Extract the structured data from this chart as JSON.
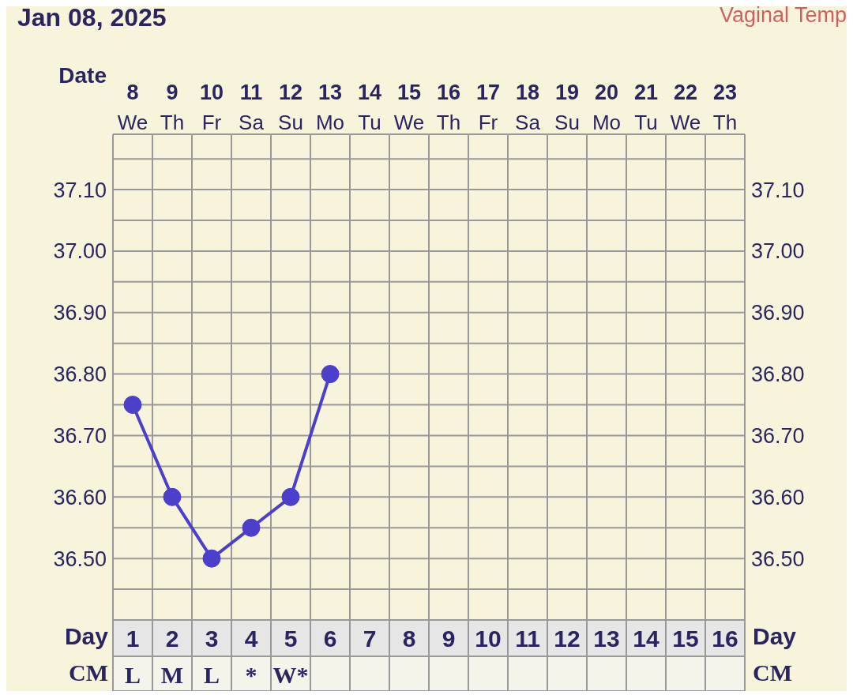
{
  "chart_data": {
    "type": "line",
    "title": "Jan 08, 2025",
    "subtitle": "Vaginal Temp",
    "xlabel": "Day",
    "x2label": "Date",
    "categories": [
      "1",
      "2",
      "3",
      "4",
      "5",
      "6",
      "7",
      "8",
      "9",
      "10",
      "11",
      "12",
      "13",
      "14",
      "15",
      "16"
    ],
    "x2lim": [
      7.5,
      23.5
    ],
    "x2ticks": [
      {
        "value": 8,
        "label": "8 We"
      },
      {
        "value": 9,
        "label": "9 Th"
      },
      {
        "value": 10,
        "label": "10 Fr"
      },
      {
        "value": 11,
        "label": "11 Sa"
      },
      {
        "value": 12,
        "label": "12 Su"
      },
      {
        "value": 13,
        "label": "13 Mo"
      },
      {
        "value": 14,
        "label": "14 Tu"
      },
      {
        "value": 15,
        "label": "15 We"
      },
      {
        "value": 16,
        "label": "16 Th"
      },
      {
        "value": 17,
        "label": "17 Fr"
      },
      {
        "value": 18,
        "label": "18 Sa"
      },
      {
        "value": 19,
        "label": "19 Su"
      },
      {
        "value": 20,
        "label": "20 Mo"
      },
      {
        "value": 21,
        "label": "21 Tu"
      },
      {
        "value": 22,
        "label": "22 We"
      },
      {
        "value": 23,
        "label": "23 Th"
      }
    ],
    "series": [
      {
        "color": "#4b3fcc",
        "values": [
          36.75,
          36.6,
          36.5,
          36.55,
          36.6,
          36.8,
          null,
          null,
          null,
          null,
          null,
          null,
          null,
          null,
          null,
          null
        ]
      }
    ],
    "ylim": [
      36.4,
      37.19
    ],
    "yticks": [
      {
        "value": 36.45,
        "label": null
      },
      {
        "value": 36.5,
        "label": "36.50"
      },
      {
        "value": 36.55,
        "label": null
      },
      {
        "value": 36.6,
        "label": "36.60"
      },
      {
        "value": 36.65,
        "label": null
      },
      {
        "value": 36.7,
        "label": "36.70"
      },
      {
        "value": 36.75,
        "label": null
      },
      {
        "value": 36.8,
        "label": "36.80"
      },
      {
        "value": 36.85,
        "label": null
      },
      {
        "value": 36.9,
        "label": "36.90"
      },
      {
        "value": 36.95,
        "label": null
      },
      {
        "value": 37.0,
        "label": "37.00"
      },
      {
        "value": 37.05,
        "label": null
      },
      {
        "value": 37.1,
        "label": "37.10"
      },
      {
        "value": 37.15,
        "label": null
      }
    ],
    "y2lim": [
      36.4,
      37.19
    ],
    "y2ticks": [
      {
        "value": 36.45,
        "label": null
      },
      {
        "value": 36.5,
        "label": "36.50"
      },
      {
        "value": 36.55,
        "label": null
      },
      {
        "value": 36.6,
        "label": "36.60"
      },
      {
        "value": 36.65,
        "label": null
      },
      {
        "value": 36.7,
        "label": "36.70"
      },
      {
        "value": 36.75,
        "label": null
      },
      {
        "value": 36.8,
        "label": "36.80"
      },
      {
        "value": 36.85,
        "label": null
      },
      {
        "value": 36.9,
        "label": "36.90"
      },
      {
        "value": 36.95,
        "label": null
      },
      {
        "value": 37.0,
        "label": "37.00"
      },
      {
        "value": 37.05,
        "label": null
      },
      {
        "value": 37.1,
        "label": "37.10"
      },
      {
        "value": 37.15,
        "label": null
      }
    ],
    "grid": true,
    "marker": "circle",
    "line_style": "solid",
    "annotations": [
      "CM",
      "L",
      "M",
      "L",
      "*",
      "W*"
    ]
  }
}
